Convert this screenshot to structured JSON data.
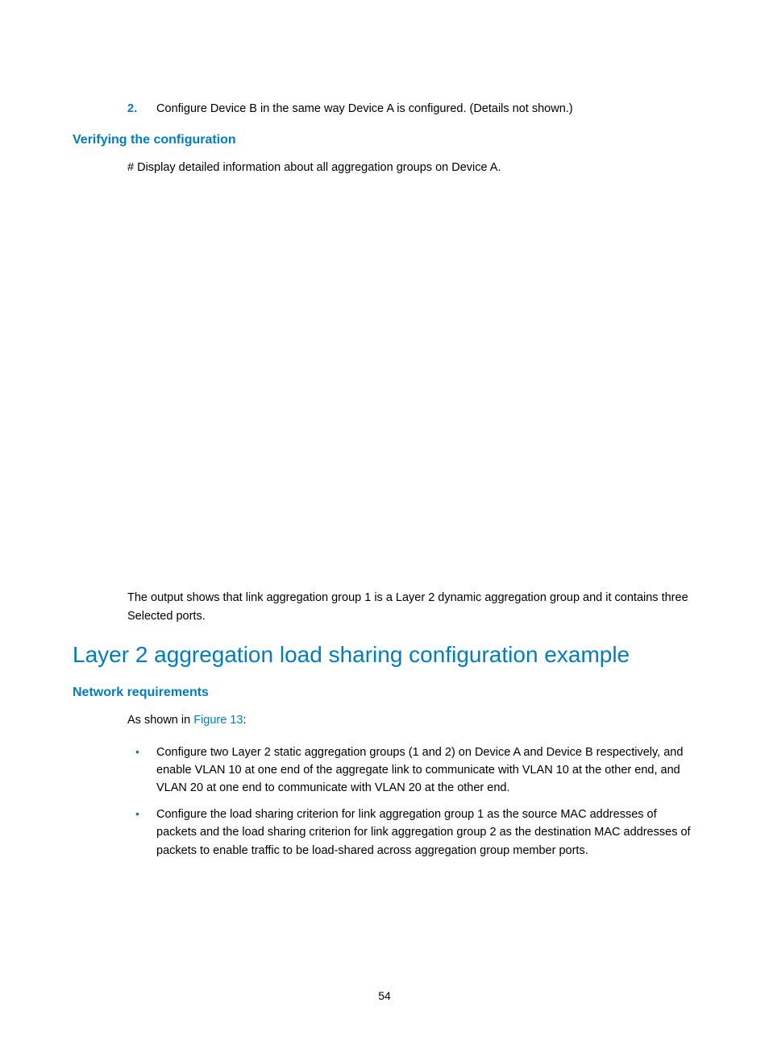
{
  "step": {
    "number": "2.",
    "text": "Configure Device B in the same way Device A is configured. (Details not shown.)"
  },
  "sections": {
    "verify": {
      "title": "Verifying the configuration",
      "line1": "# Display detailed information about all aggregation groups on Device A.",
      "output_summary": "The output shows that link aggregation group 1 is a Layer 2 dynamic aggregation group and it contains three Selected ports."
    },
    "loadshare": {
      "title": "Layer 2 aggregation load sharing configuration example"
    },
    "netreq": {
      "title": "Network requirements",
      "intro_prefix": "As shown in ",
      "intro_link": "Figure 13",
      "intro_suffix": ":",
      "bullets": [
        "Configure two Layer 2 static aggregation groups (1 and 2) on Device A and Device B respectively, and enable VLAN 10 at one end of the aggregate link to communicate with VLAN 10 at the other end, and VLAN 20 at one end to communicate with VLAN 20 at the other end.",
        "Configure the load sharing criterion for link aggregation group 1 as the source MAC addresses of packets and the load sharing criterion for link aggregation group 2 as the destination MAC addresses of packets to enable traffic to be load-shared across aggregation group member ports."
      ]
    }
  },
  "page_number": "54",
  "colors": {
    "accent": "#007dba",
    "text": "#000000",
    "background": "#ffffff"
  }
}
